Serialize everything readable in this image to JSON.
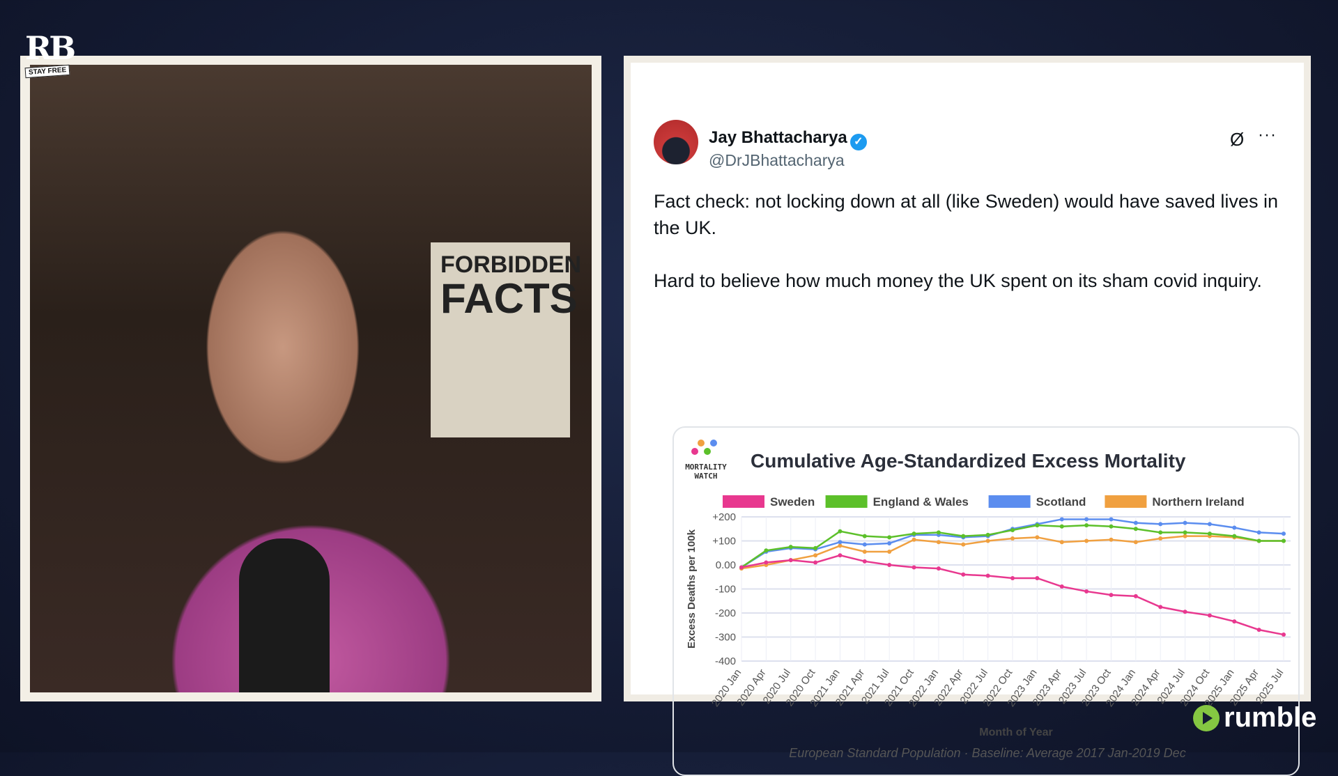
{
  "overlay": {
    "show_logo": "RB",
    "show_tagline": "STAY FREE",
    "platform_logo": "rumble"
  },
  "video": {
    "poster_line1": "FORBIDDEN",
    "poster_line2": "FACTS"
  },
  "tweet": {
    "author_name": "Jay Bhattacharya",
    "verified_icon": "verified-badge-icon",
    "handle": "@DrJBhattacharya",
    "paragraphs": [
      "Fact check: not locking down at all (like Sweden) would have saved lives in the UK.",
      "Hard to believe how much money the UK spent on its sham covid inquiry."
    ],
    "more_label": "···",
    "grok_icon": "Ø"
  },
  "chart_data": {
    "type": "line",
    "brand": "MORTALITY WATCH",
    "title": "Cumulative Age-Standardized Excess Mortality",
    "xlabel": "Month of Year",
    "ylabel": "Excess Deaths per 100k",
    "caption": "European Standard Population · Baseline: Average 2017 Jan-2019 Dec",
    "ylim": [
      -400,
      200
    ],
    "yticks": [
      {
        "v": 200,
        "label": "+200"
      },
      {
        "v": 100,
        "label": "+100"
      },
      {
        "v": 0,
        "label": "0.00"
      },
      {
        "v": -100,
        "label": "-100"
      },
      {
        "v": -200,
        "label": "-200"
      },
      {
        "v": -300,
        "label": "-300"
      },
      {
        "v": -400,
        "label": "-400"
      }
    ],
    "grid": true,
    "legend_position": "top",
    "x": [
      "2020 Jan",
      "2020 Apr",
      "2020 Jul",
      "2020 Oct",
      "2021 Jan",
      "2021 Apr",
      "2021 Jul",
      "2021 Oct",
      "2022 Jan",
      "2022 Apr",
      "2022 Jul",
      "2022 Oct",
      "2023 Jan",
      "2023 Apr",
      "2023 Jul",
      "2023 Oct",
      "2024 Jan",
      "2024 Apr",
      "2024 Jul",
      "2024 Oct",
      "2025 Jan",
      "2025 Apr",
      "2025 Jul"
    ],
    "series": [
      {
        "name": "Sweden",
        "color": "#e8388f",
        "values": [
          -10,
          10,
          20,
          10,
          40,
          15,
          0,
          -10,
          -15,
          -40,
          -45,
          -55,
          -55,
          -90,
          -110,
          -125,
          -130,
          -175,
          -195,
          -210,
          -235,
          -270,
          -290
        ]
      },
      {
        "name": "England & Wales",
        "color": "#5cc02a",
        "values": [
          -10,
          60,
          75,
          70,
          140,
          120,
          115,
          130,
          135,
          120,
          125,
          145,
          165,
          160,
          165,
          160,
          150,
          135,
          135,
          130,
          120,
          100,
          100
        ]
      },
      {
        "name": "Scotland",
        "color": "#5b8def",
        "values": [
          -10,
          55,
          70,
          65,
          95,
          85,
          90,
          125,
          125,
          115,
          120,
          150,
          170,
          190,
          190,
          190,
          175,
          170,
          175,
          170,
          155,
          135,
          130
        ]
      },
      {
        "name": "Northern Ireland",
        "color": "#f0a040",
        "values": [
          -15,
          0,
          20,
          40,
          80,
          55,
          55,
          105,
          95,
          85,
          100,
          110,
          115,
          95,
          100,
          105,
          95,
          110,
          120,
          120,
          115,
          100,
          100
        ]
      }
    ]
  }
}
